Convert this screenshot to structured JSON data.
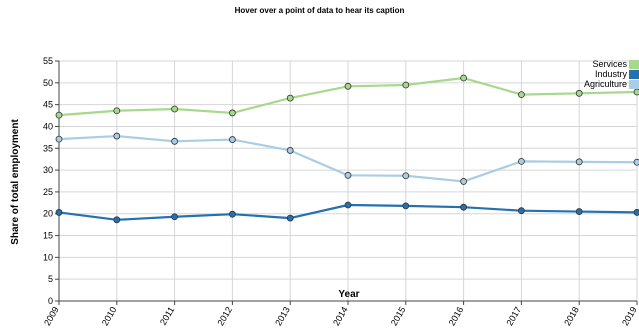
{
  "header": {
    "caption_hint": "Hover over a point of data to hear its caption"
  },
  "chart_data": {
    "type": "line",
    "title": "",
    "xlabel": "Year",
    "ylabel": "Share of total employment",
    "categories": [
      "2009",
      "2010",
      "2011",
      "2012",
      "2013",
      "2014",
      "2015",
      "2016",
      "2017",
      "2018",
      "2019"
    ],
    "ylim": [
      0,
      55
    ],
    "yticks": [
      0,
      5,
      10,
      15,
      20,
      25,
      30,
      35,
      40,
      45,
      50,
      55
    ],
    "grid": true,
    "legend_position": "top-right",
    "series": [
      {
        "name": "Services",
        "color": "#a6d98c",
        "values": [
          42.6,
          43.6,
          44.0,
          43.1,
          46.5,
          49.2,
          49.5,
          51.1,
          47.3,
          47.6,
          47.9
        ]
      },
      {
        "name": "Industry",
        "color": "#2471b0",
        "values": [
          20.3,
          18.6,
          19.3,
          19.9,
          19.0,
          22.0,
          21.8,
          21.5,
          20.7,
          20.5,
          20.3
        ]
      },
      {
        "name": "Agriculture",
        "color": "#a8cde4",
        "values": [
          37.1,
          37.8,
          36.6,
          37.0,
          34.5,
          28.8,
          28.7,
          27.4,
          32.0,
          31.9,
          31.8
        ]
      }
    ]
  }
}
